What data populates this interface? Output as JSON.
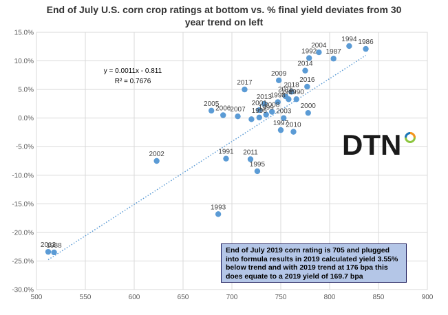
{
  "chart_data": {
    "type": "scatter",
    "title_lines": [
      "End of July U.S. corn crop ratings at bottom vs. % final yield deviates from 30",
      "year trend on left"
    ],
    "xlabel": "",
    "ylabel": "",
    "xlim": [
      500,
      900
    ],
    "ylim": [
      -30,
      15
    ],
    "x_ticks": [
      "500",
      "550",
      "600",
      "650",
      "700",
      "750",
      "800",
      "850",
      "900"
    ],
    "y_ticks": [
      "15.0%",
      "10.0%",
      "5.0%",
      "0.0%",
      "-5.0%",
      "-10.0%",
      "-15.0%",
      "-20.0%",
      "-25.0%",
      "-30.0%"
    ],
    "grid": true,
    "trendline": {
      "slope": 0.0011,
      "intercept": -0.811,
      "style": "dotted",
      "color": "#5b9bd5"
    },
    "equation_lines": [
      "y = 0.0011x - 0.811",
      "R² = 0.7676"
    ],
    "point_color": "#5b9bd5",
    "points": [
      {
        "label": "1986",
        "x": 837,
        "y": 12.1
      },
      {
        "label": "1994",
        "x": 820,
        "y": 12.6
      },
      {
        "label": "1987",
        "x": 804,
        "y": 10.4
      },
      {
        "label": "2004",
        "x": 789,
        "y": 11.5
      },
      {
        "label": "1992",
        "x": 779,
        "y": 10.5
      },
      {
        "label": "2014",
        "x": 775,
        "y": 8.3
      },
      {
        "label": "2016",
        "x": 777,
        "y": 5.5
      },
      {
        "label": "2009",
        "x": 748,
        "y": 6.6
      },
      {
        "label": "2017",
        "x": 713,
        "y": 5.0
      },
      {
        "label": "2018",
        "x": 761,
        "y": 4.6
      },
      {
        "label": "2015",
        "x": 755,
        "y": 3.8
      },
      {
        "label": "1989",
        "x": 758,
        "y": 3.3
      },
      {
        "label": "1990",
        "x": 766,
        "y": 3.3
      },
      {
        "label": "1998",
        "x": 747,
        "y": 2.8
      },
      {
        "label": "2013",
        "x": 733,
        "y": 2.5
      },
      {
        "label": "2001",
        "x": 728,
        "y": 1.4
      },
      {
        "label": "2008",
        "x": 741,
        "y": 1.1
      },
      {
        "label": "1999",
        "x": 735,
        "y": 0.6
      },
      {
        "label": "1996",
        "x": 728,
        "y": 0.1
      },
      {
        "label": "2005",
        "x": 679,
        "y": 1.3
      },
      {
        "label": "2006",
        "x": 691,
        "y": 0.5
      },
      {
        "label": "2007",
        "x": 706,
        "y": 0.3
      },
      {
        "label": "",
        "x": 720,
        "y": -0.2
      },
      {
        "label": "2003",
        "x": 753,
        "y": 0.0
      },
      {
        "label": "2000",
        "x": 778,
        "y": 0.9
      },
      {
        "label": "1997",
        "x": 750,
        "y": -2.1
      },
      {
        "label": "2010",
        "x": 763,
        "y": -2.4
      },
      {
        "label": "2002",
        "x": 623,
        "y": -7.5
      },
      {
        "label": "1991",
        "x": 694,
        "y": -7.1
      },
      {
        "label": "2011",
        "x": 719,
        "y": -7.2
      },
      {
        "label": "1995",
        "x": 726,
        "y": -9.3
      },
      {
        "label": "1993",
        "x": 686,
        "y": -16.8
      },
      {
        "label": "2012",
        "x": 512,
        "y": -23.4
      },
      {
        "label": "1988",
        "x": 518,
        "y": -23.5
      }
    ]
  },
  "note": {
    "lines": [
      "End of July 2019 corn rating is 705 and plugged",
      "into formula results in 2019 calculated yield 3.55%",
      "below trend and with 2019 trend at 176 bpa this",
      "does equate to a 2019 yield of 169.7 bpa"
    ]
  },
  "logo": {
    "text": "DTN",
    "colors": [
      "#f7941d",
      "#8dc63f",
      "#00a99d",
      "#1b75bc"
    ]
  }
}
